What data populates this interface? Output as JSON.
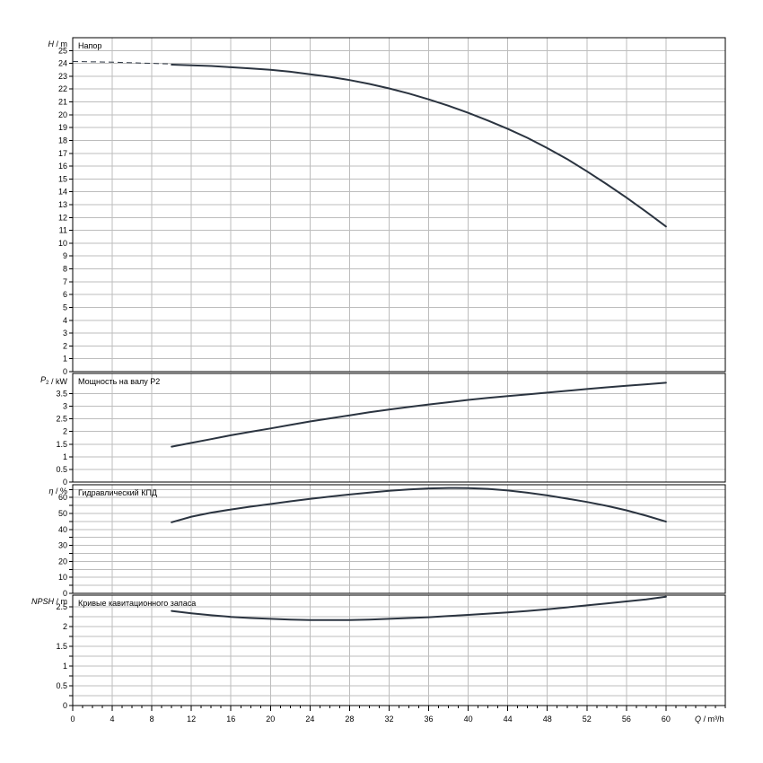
{
  "chart_data": {
    "type": "line",
    "x_axis": {
      "label_q": "Q",
      "label_unit": "m³/h",
      "range": [
        0,
        66
      ],
      "major_ticks": [
        0,
        4,
        8,
        12,
        16,
        20,
        24,
        28,
        32,
        36,
        40,
        44,
        48,
        52,
        56,
        60
      ],
      "minor_step": 1
    },
    "grid": true,
    "panels": [
      {
        "title": "Напор",
        "y_symbol": "H",
        "y_unit": "m",
        "ylim": [
          0,
          26
        ],
        "y_major_ticks": [
          0,
          1,
          2,
          3,
          4,
          5,
          6,
          7,
          8,
          9,
          10,
          11,
          12,
          13,
          14,
          15,
          16,
          17,
          18,
          19,
          20,
          21,
          22,
          23,
          24,
          25
        ],
        "y_tick_labels": [
          "0",
          "1",
          "2",
          "3",
          "4",
          "5",
          "6",
          "7",
          "8",
          "9",
          "10",
          "11",
          "12",
          "13",
          "14",
          "15",
          "16",
          "17",
          "18",
          "19",
          "20",
          "21",
          "22",
          "23",
          "24",
          "25"
        ],
        "series": [
          {
            "style": "dashed",
            "x": [
              0,
              4,
              8,
              10
            ],
            "y": [
              24.15,
              24.1,
              24.0,
              23.95
            ]
          },
          {
            "style": "solid",
            "x": [
              10,
              12,
              14,
              16,
              18,
              20,
              22,
              24,
              26,
              28,
              30,
              32,
              34,
              36,
              38,
              40,
              42,
              44,
              46,
              48,
              50,
              52,
              54,
              56,
              58,
              60
            ],
            "y": [
              23.9,
              23.85,
              23.8,
              23.7,
              23.6,
              23.5,
              23.35,
              23.15,
              22.95,
              22.7,
              22.4,
              22.05,
              21.65,
              21.2,
              20.7,
              20.15,
              19.55,
              18.9,
              18.2,
              17.4,
              16.55,
              15.6,
              14.6,
              13.55,
              12.45,
              11.3
            ]
          }
        ]
      },
      {
        "title": "Мощность на валу P2",
        "y_symbol": "P",
        "y_symbol_sub": "2",
        "y_unit": "kW",
        "ylim": [
          0,
          4.3
        ],
        "y_major_ticks": [
          0,
          0.5,
          1,
          1.5,
          2,
          2.5,
          3,
          3.5
        ],
        "y_tick_labels": [
          "0",
          "0.5",
          "1",
          "1.5",
          "2",
          "2.5",
          "3",
          "3.5"
        ],
        "series": [
          {
            "style": "solid",
            "x": [
              10,
              12,
              14,
              16,
              18,
              20,
              22,
              24,
              26,
              28,
              30,
              32,
              34,
              36,
              38,
              40,
              42,
              44,
              46,
              48,
              50,
              52,
              54,
              56,
              58,
              60
            ],
            "y": [
              1.4,
              1.55,
              1.7,
              1.85,
              1.99,
              2.12,
              2.26,
              2.4,
              2.52,
              2.64,
              2.76,
              2.87,
              2.97,
              3.07,
              3.16,
              3.25,
              3.33,
              3.4,
              3.47,
              3.54,
              3.61,
              3.68,
              3.75,
              3.81,
              3.87,
              3.93
            ]
          }
        ]
      },
      {
        "title": "Гидравлический КПД",
        "y_symbol": "η",
        "y_unit": "%",
        "ylim": [
          0,
          68
        ],
        "y_major_ticks": [
          0,
          5,
          10,
          15,
          20,
          25,
          30,
          35,
          40,
          45,
          50,
          55,
          60,
          65
        ],
        "y_tick_labels": [
          "0",
          "",
          "10",
          "",
          "20",
          "",
          "30",
          "",
          "40",
          "",
          "50",
          "",
          "60",
          ""
        ],
        "series": [
          {
            "style": "solid",
            "x": [
              10,
              12,
              14,
              16,
              18,
              20,
              22,
              24,
              26,
              28,
              30,
              32,
              34,
              36,
              38,
              40,
              42,
              44,
              46,
              48,
              50,
              52,
              54,
              56,
              58,
              60
            ],
            "y": [
              44.5,
              48,
              50.5,
              52.5,
              54.3,
              55.9,
              57.6,
              59.2,
              60.6,
              61.9,
              63.1,
              64.2,
              65.1,
              65.7,
              66.0,
              65.9,
              65.4,
              64.4,
              63.0,
              61.3,
              59.3,
              57.2,
              54.8,
              52.0,
              48.6,
              44.9
            ]
          }
        ]
      },
      {
        "title": "Кривые кавитационного запаса",
        "y_symbol": "NPSH",
        "y_unit": "m",
        "ylim": [
          0,
          2.8
        ],
        "y_major_ticks": [
          0,
          0.25,
          0.5,
          0.75,
          1,
          1.25,
          1.5,
          1.75,
          2,
          2.25,
          2.5
        ],
        "y_tick_labels": [
          "0",
          "",
          "0.5",
          "",
          "1",
          "",
          "1.5",
          "",
          "2",
          "",
          "2.5"
        ],
        "series": [
          {
            "style": "solid",
            "x": [
              10,
              12,
              14,
              16,
              18,
              20,
              22,
              24,
              26,
              28,
              30,
              32,
              34,
              36,
              38,
              40,
              42,
              44,
              46,
              48,
              50,
              52,
              54,
              56,
              58,
              60
            ],
            "y": [
              2.4,
              2.34,
              2.29,
              2.25,
              2.22,
              2.2,
              2.18,
              2.17,
              2.17,
              2.17,
              2.18,
              2.2,
              2.22,
              2.24,
              2.27,
              2.3,
              2.33,
              2.36,
              2.4,
              2.44,
              2.49,
              2.54,
              2.59,
              2.64,
              2.69,
              2.76
            ]
          }
        ]
      }
    ]
  }
}
